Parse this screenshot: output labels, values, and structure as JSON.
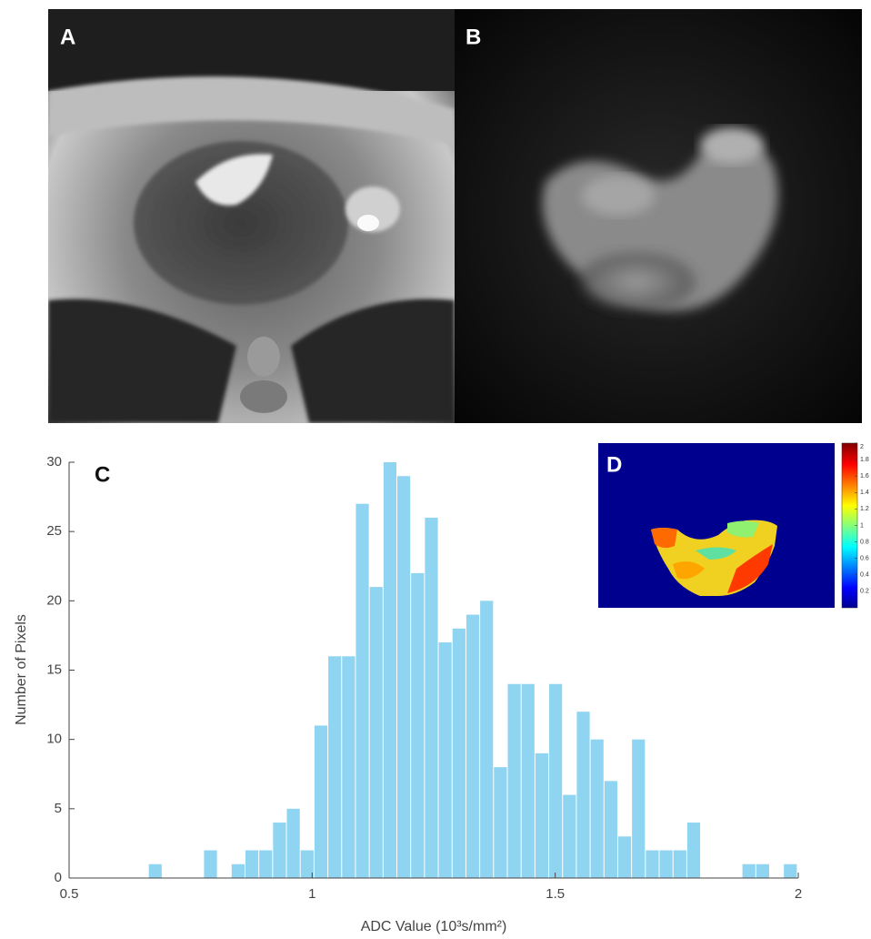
{
  "panels": {
    "a": "A",
    "b": "B",
    "c": "C",
    "d": "D"
  },
  "colorbar": {
    "lim": [
      0,
      2
    ],
    "ticks": [
      0.2,
      0.4,
      0.6,
      0.8,
      1,
      1.2,
      1.4,
      1.6,
      1.8,
      2
    ]
  },
  "chart_data": {
    "type": "histogram",
    "xlabel": "ADC Value (10³s/mm²)",
    "ylabel": "Number of Pixels",
    "bins": [
      0.664,
      0.6924,
      0.7208,
      0.7492,
      0.7776,
      0.806,
      0.8344,
      0.8628,
      0.8912,
      0.9196,
      0.948,
      0.9764,
      1.0048,
      1.0332,
      1.0616,
      1.09,
      1.1184,
      1.1468,
      1.1752,
      1.2036,
      1.232,
      1.2604,
      1.2888,
      1.3172,
      1.3456,
      1.374,
      1.4024,
      1.4308,
      1.4592,
      1.4876,
      1.516,
      1.5444,
      1.5728,
      1.6012,
      1.6296,
      1.658,
      1.6864,
      1.7148,
      1.7432,
      1.7716,
      1.8,
      1.8284,
      1.8568,
      1.8852,
      1.9136,
      1.942,
      1.9704,
      1.9988
    ],
    "values": [
      1,
      0,
      0,
      0,
      2,
      0,
      1,
      2,
      2,
      4,
      5,
      2,
      11,
      16,
      16,
      27,
      21,
      30,
      29,
      22,
      26,
      17,
      18,
      19,
      20,
      8,
      14,
      14,
      9,
      14,
      6,
      12,
      10,
      7,
      3,
      10,
      2,
      2,
      2,
      4,
      0,
      0,
      0,
      1,
      1,
      0,
      1
    ],
    "color": "#8fd4f0",
    "xlim": [
      0.5,
      2
    ],
    "xticks": [
      0.5,
      1,
      1.5,
      2
    ],
    "ylim": [
      0,
      30
    ],
    "yticks": [
      0,
      5,
      10,
      15,
      20,
      25,
      30
    ]
  }
}
